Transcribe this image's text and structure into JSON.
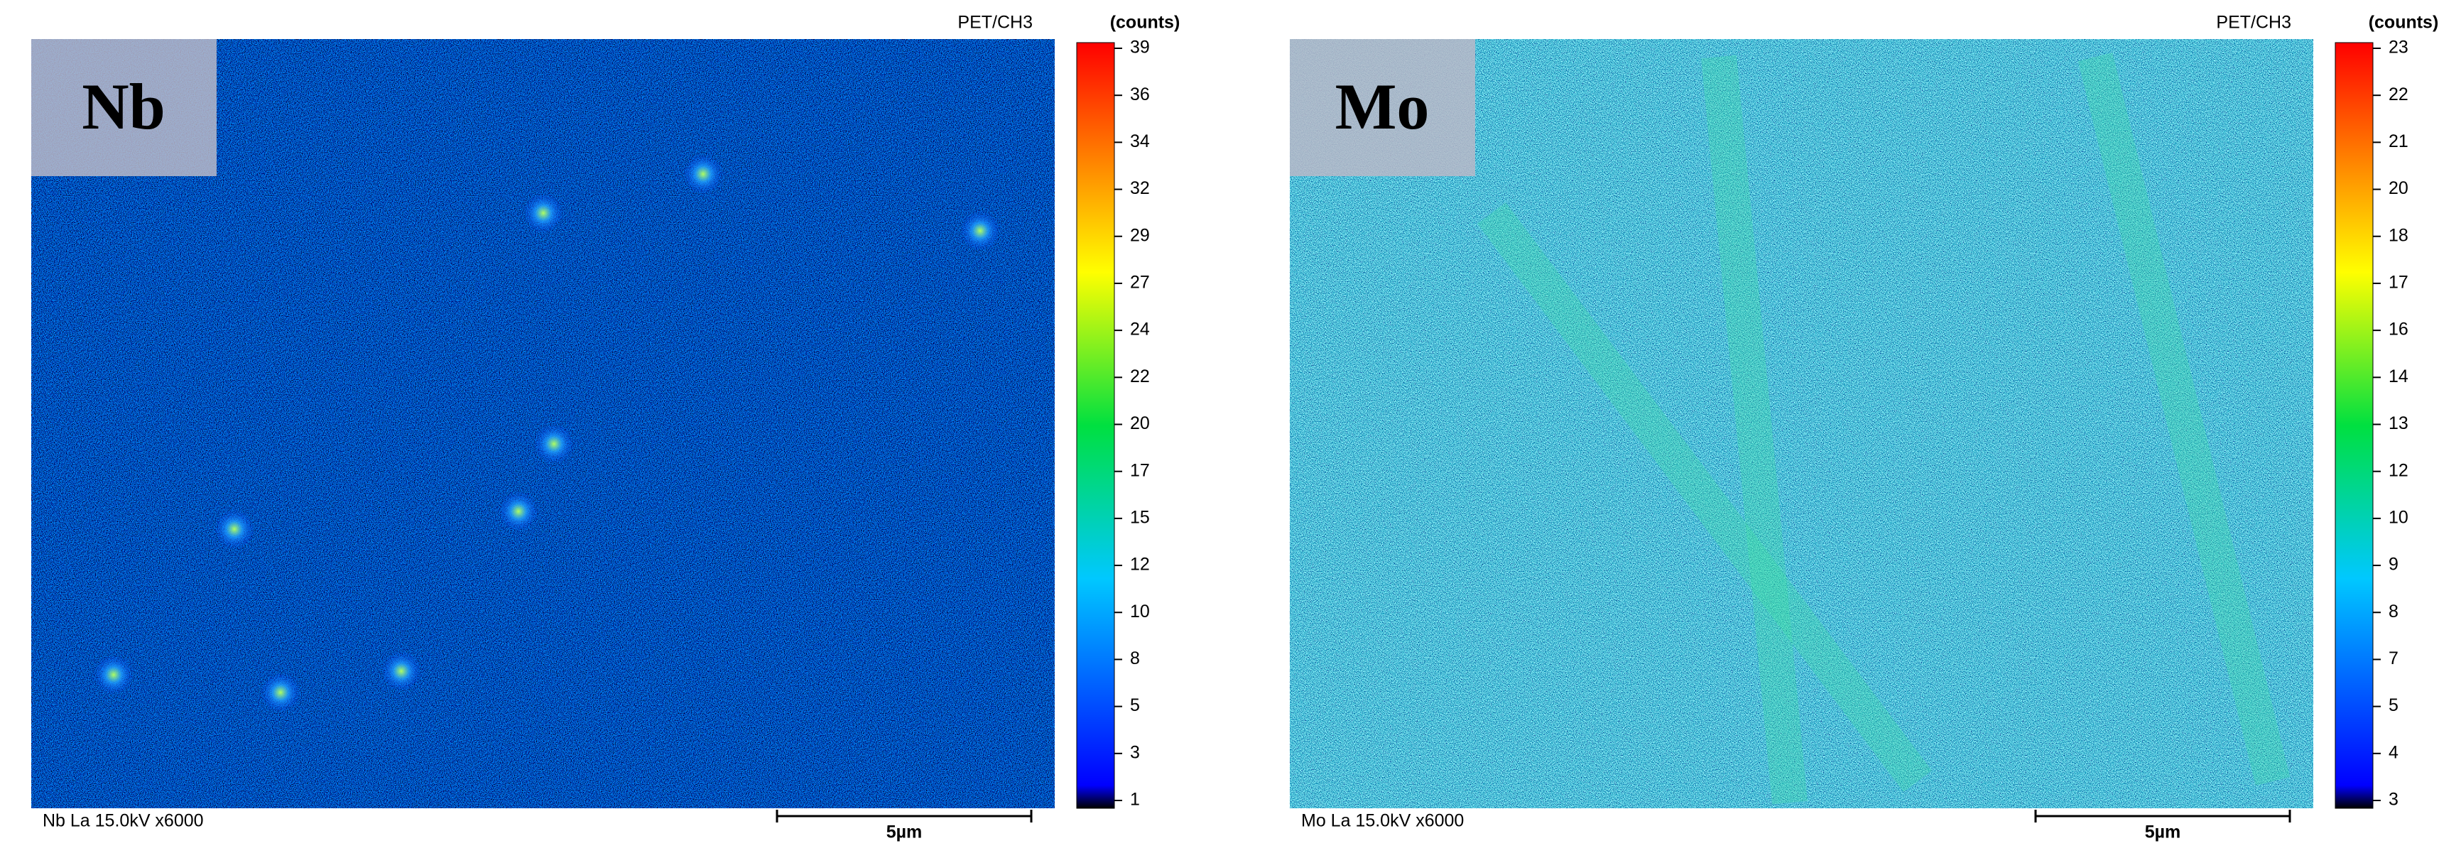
{
  "panels": [
    {
      "element": "Nb",
      "channel": "PET/CH3",
      "units": "(counts)",
      "ticks": [
        39,
        36,
        34,
        32,
        29,
        27,
        24,
        22,
        20,
        17,
        15,
        12,
        10,
        8,
        5,
        3,
        1
      ],
      "footer": "Nb La 15.0kV x6000",
      "scale_bar": "5µm"
    },
    {
      "element": "Mo",
      "channel": "PET/CH3",
      "units": "(counts)",
      "ticks": [
        23,
        22,
        21,
        20,
        18,
        17,
        16,
        14,
        13,
        12,
        10,
        9,
        8,
        7,
        5,
        4,
        3
      ],
      "footer": "Mo La 15.0kV x6000",
      "scale_bar": "5µm"
    }
  ]
}
